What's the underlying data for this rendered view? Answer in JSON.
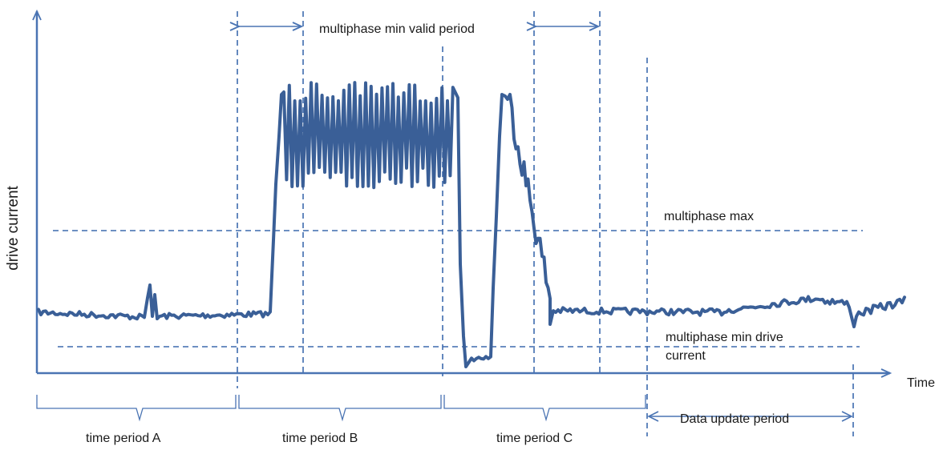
{
  "labels": {
    "y_axis": "drive current",
    "x_axis": "Time",
    "min_valid_period": "multiphase min valid period",
    "multiphase_max": "multiphase max",
    "min_drive_line1": "multiphase min drive",
    "min_drive_line2": "current",
    "data_update_period": "Data update period",
    "period_a": "time period A",
    "period_b": "time period B",
    "period_c": "time period C"
  },
  "colors": {
    "axis": "#4a74b3",
    "signal": "#3a5f97",
    "guides": "#3d6aae"
  }
}
